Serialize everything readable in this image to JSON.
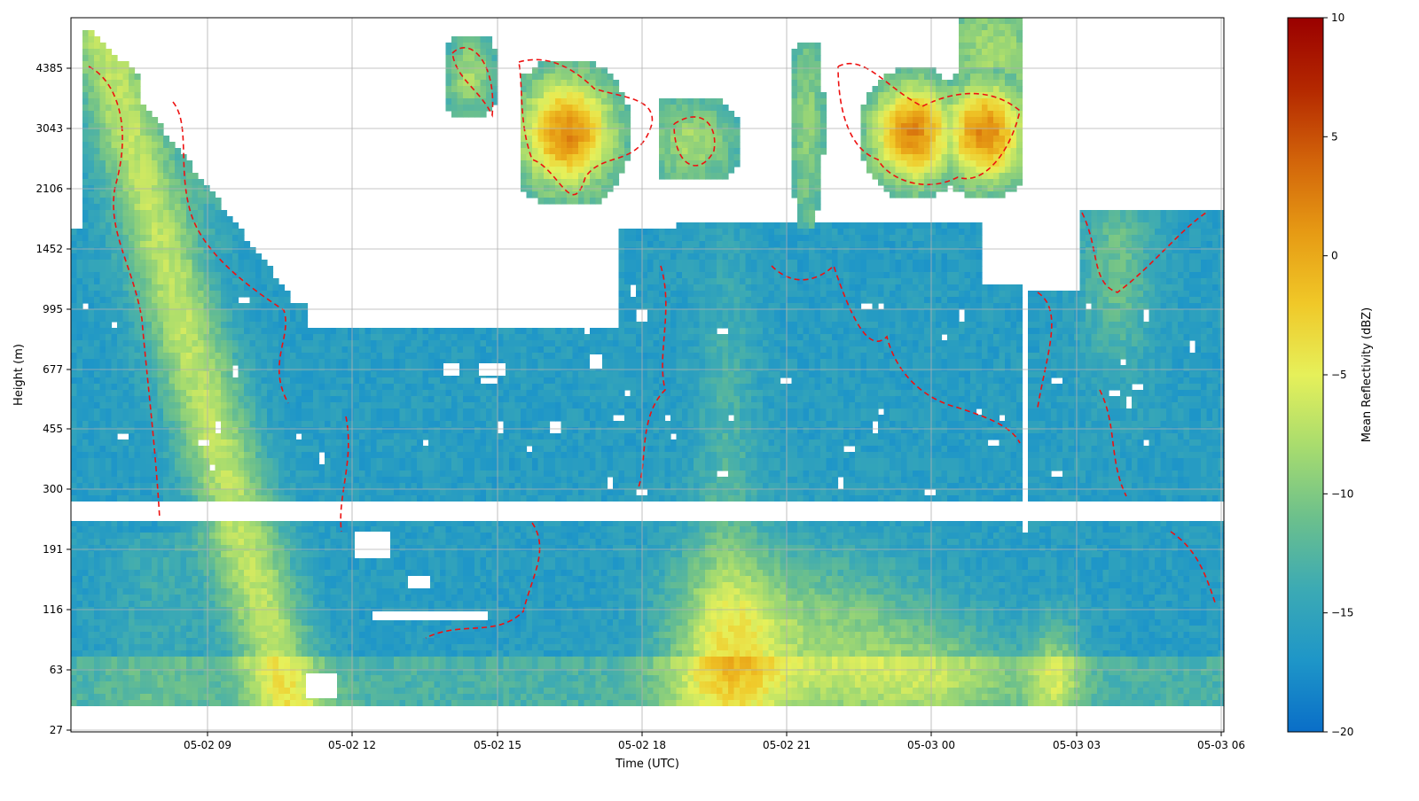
{
  "chart_data": {
    "type": "heatmap",
    "title": "",
    "xlabel": "Time (UTC)",
    "ylabel": "Height (m)",
    "x_ticks": [
      "05-02 09",
      "05-02 12",
      "05-02 15",
      "05-02 18",
      "05-02 21",
      "05-03 00",
      "05-03 03",
      "05-03 06"
    ],
    "x_tick_hours": [
      9,
      12,
      15,
      18,
      21,
      24,
      27,
      30
    ],
    "x_range_hours": [
      6.2,
      30.0
    ],
    "y_ticks": [
      "27",
      "63",
      "116",
      "191",
      "300",
      "455",
      "677",
      "995",
      "1452",
      "2106",
      "3043",
      "4385"
    ],
    "y_scale": "log",
    "colorbar": {
      "label": "Mean Reflectivity (dBZ)",
      "ticks": [
        "10",
        "5",
        "0",
        "−5",
        "−10",
        "−15",
        "−20"
      ],
      "min": -20,
      "max": 10,
      "colormap": [
        "#0a6ec8",
        "#1e96c8",
        "#3caab4",
        "#6cc08c",
        "#a8dc6e",
        "#e6f05a",
        "#f0c828",
        "#e69a14",
        "#d2640a",
        "#b42800",
        "#9a0000"
      ]
    },
    "contour": {
      "color": "#ee1111",
      "style": "dashed"
    },
    "grid": true,
    "features": [
      {
        "name": "high cloud layer",
        "x_hours": [
          16.0,
          17.5
        ],
        "height_m": 3043,
        "peak_dbz": -3
      },
      {
        "name": "high cloud layer",
        "x_hours": [
          25.3,
          26.0
        ],
        "height_m": 3043,
        "peak_dbz": -2
      },
      {
        "name": "low-level echo maximum",
        "x_hours": [
          19.5,
          20.2
        ],
        "height_m": 63,
        "peak_dbz": 2
      },
      {
        "name": "fall streak",
        "x_hours": [
          6.5,
          10.0
        ],
        "height_m": 3400,
        "peak_dbz": -4
      }
    ]
  }
}
